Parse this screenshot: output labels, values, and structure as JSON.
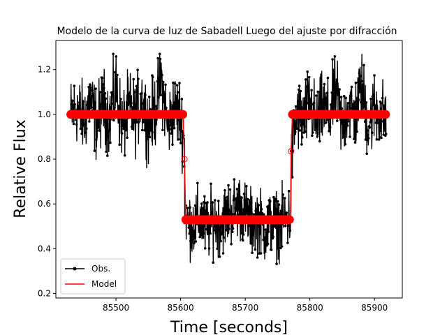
{
  "chart_data": {
    "type": "line",
    "title": "Modelo de la curva de luz de Sabadell Luego del ajuste por difracción",
    "xlabel": "Time [seconds]",
    "ylabel": "Relative Flux",
    "xlim": [
      85407,
      85943
    ],
    "ylim": [
      0.18,
      1.33
    ],
    "xticks": [
      85500,
      85600,
      85700,
      85800,
      85900
    ],
    "yticks": [
      0.2,
      0.4,
      0.6,
      0.8,
      1.0,
      1.2
    ],
    "grid": false,
    "legend_position": "lower-left",
    "series": [
      {
        "name": "Obs.",
        "color": "#000000",
        "marker": "circle",
        "description_points": [
          [
            85430,
            1.0
          ],
          [
            85440,
            1.05
          ],
          [
            85450,
            0.95
          ],
          [
            85460,
            1.12
          ],
          [
            85470,
            0.92
          ],
          [
            85480,
            1.08
          ],
          [
            85490,
            0.96
          ],
          [
            85500,
            1.2
          ],
          [
            85510,
            0.9
          ],
          [
            85520,
            1.05
          ],
          [
            85530,
            0.98
          ],
          [
            85540,
            1.12
          ],
          [
            85550,
            0.93
          ],
          [
            85560,
            1.02
          ],
          [
            85570,
            1.27
          ],
          [
            85580,
            0.9
          ],
          [
            85590,
            1.05
          ],
          [
            85600,
            0.99
          ],
          [
            85605,
            0.8
          ],
          [
            85610,
            0.5
          ],
          [
            85620,
            0.45
          ],
          [
            85630,
            0.55
          ],
          [
            85640,
            0.4
          ],
          [
            85650,
            0.52
          ],
          [
            85660,
            0.47
          ],
          [
            85670,
            0.58
          ],
          [
            85680,
            0.65
          ],
          [
            85690,
            0.72
          ],
          [
            85700,
            0.6
          ],
          [
            85710,
            0.48
          ],
          [
            85720,
            0.55
          ],
          [
            85730,
            0.4
          ],
          [
            85740,
            0.5
          ],
          [
            85750,
            0.46
          ],
          [
            85760,
            0.52
          ],
          [
            85770,
            0.56
          ],
          [
            85775,
            0.85
          ],
          [
            85780,
            1.0
          ],
          [
            85790,
            0.95
          ],
          [
            85800,
            1.1
          ],
          [
            85810,
            0.92
          ],
          [
            85820,
            1.05
          ],
          [
            85830,
            0.97
          ],
          [
            85840,
            1.18
          ],
          [
            85850,
            0.9
          ],
          [
            85860,
            1.08
          ],
          [
            85870,
            0.98
          ],
          [
            85880,
            1.23
          ],
          [
            85890,
            0.91
          ],
          [
            85900,
            1.05
          ],
          [
            85910,
            1.0
          ],
          [
            85918,
            0.98
          ]
        ]
      },
      {
        "name": "Model",
        "color": "#ff0000",
        "x": [
          85430,
          85604,
          85606,
          85608,
          85770,
          85771,
          85773,
          85918
        ],
        "y": [
          1.0,
          1.0,
          0.8,
          0.53,
          0.53,
          0.835,
          1.0,
          1.0
        ]
      }
    ]
  }
}
